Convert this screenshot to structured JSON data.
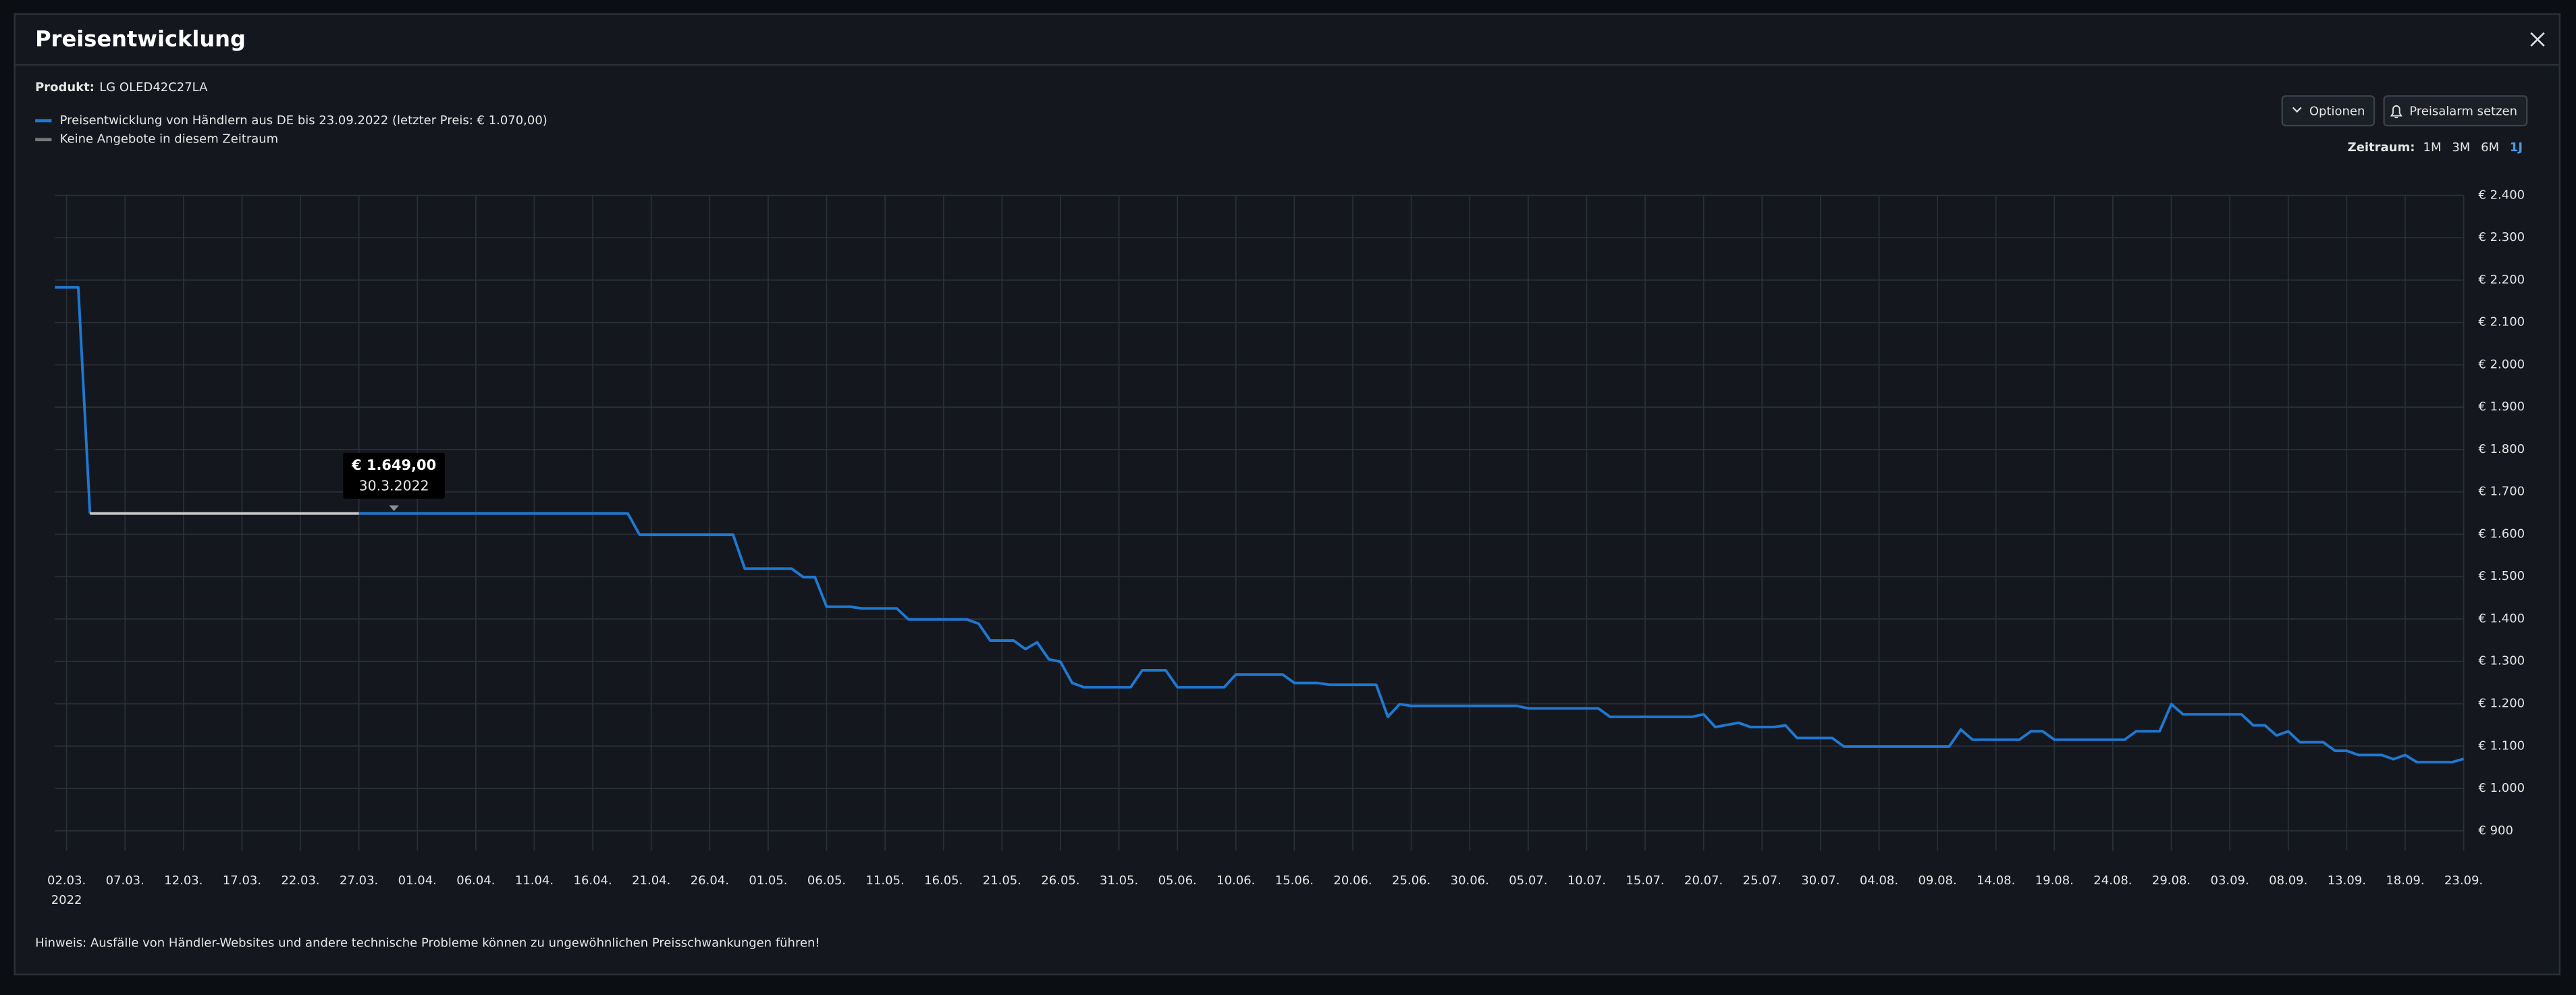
{
  "dialog": {
    "title": "Preisentwicklung",
    "product_label": "Produkt:",
    "product": "LG OLED42C27LA",
    "buttons": [
      "Optionen",
      "Preisalarm setzen"
    ],
    "range_label": "Zeitraum:",
    "ranges": [
      "1M",
      "3M",
      "6M",
      "1J"
    ],
    "active_range": "1J",
    "note": "Hinweis: Ausfälle von Händler-Websites und andere technische Probleme können zu ungewöhnlichen Preisschwankungen führen!"
  },
  "chart_data": {
    "type": "line",
    "x": [
      "2022-03-01",
      "2022-03-03",
      "2022-03-04",
      "2022-03-15",
      "2022-03-27",
      "2022-04-19",
      "2022-04-20",
      "2022-04-28",
      "2022-04-29",
      "2022-05-03",
      "2022-05-04",
      "2022-05-05",
      "2022-05-06",
      "2022-05-08",
      "2022-05-09",
      "2022-05-12",
      "2022-05-13",
      "2022-05-18",
      "2022-05-19",
      "2022-05-20",
      "2022-05-22",
      "2022-05-23",
      "2022-05-24",
      "2022-05-25",
      "2022-05-26",
      "2022-05-27",
      "2022-05-28",
      "2022-06-01",
      "2022-06-02",
      "2022-06-04",
      "2022-06-05",
      "2022-06-09",
      "2022-06-10",
      "2022-06-14",
      "2022-06-15",
      "2022-06-17",
      "2022-06-18",
      "2022-06-22",
      "2022-06-23",
      "2022-06-24",
      "2022-06-25",
      "2022-07-04",
      "2022-07-05",
      "2022-07-11",
      "2022-07-12",
      "2022-07-19",
      "2022-07-20",
      "2022-07-21",
      "2022-07-23",
      "2022-07-24",
      "2022-07-26",
      "2022-07-27",
      "2022-07-28",
      "2022-07-31",
      "2022-08-01",
      "2022-08-10",
      "2022-08-11",
      "2022-08-12",
      "2022-08-16",
      "2022-08-17",
      "2022-08-18",
      "2022-08-19",
      "2022-08-25",
      "2022-08-26",
      "2022-08-28",
      "2022-08-29",
      "2022-08-30",
      "2022-09-04",
      "2022-09-05",
      "2022-09-06",
      "2022-09-07",
      "2022-09-08",
      "2022-09-09",
      "2022-09-11",
      "2022-09-12",
      "2022-09-13",
      "2022-09-14",
      "2022-09-16",
      "2022-09-17",
      "2022-09-18",
      "2022-09-19",
      "2022-09-22",
      "2022-09-23"
    ],
    "series": [
      {
        "name": "Preisentwicklung von Händlern aus DE bis 23.09.2022 (letzter Preis: € 1.070,00)",
        "color": "#1f78d1",
        "values": [
          2183,
          2183,
          1649,
          null,
          1649,
          1649,
          1599,
          1599,
          1519,
          1519,
          1499,
          1499,
          1429,
          1429,
          1425,
          1425,
          1399,
          1399,
          1389,
          1349,
          1349,
          1329,
          1345,
          1305,
          1299,
          1249,
          1239,
          1239,
          1279,
          1279,
          1239,
          1239,
          1269,
          1269,
          1249,
          1249,
          1245,
          1245,
          1169,
          1199,
          1195,
          1195,
          1189,
          1189,
          1169,
          1169,
          1175,
          1145,
          1155,
          1145,
          1145,
          1149,
          1119,
          1119,
          1099,
          1099,
          1139,
          1115,
          1115,
          1135,
          1135,
          1115,
          1115,
          1135,
          1135,
          1199,
          1175,
          1175,
          1149,
          1149,
          1125,
          1135,
          1109,
          1109,
          1089,
          1089,
          1079,
          1079,
          1069,
          1079,
          1062,
          1062,
          1070
        ]
      },
      {
        "name": "Keine Angebote in diesem Zeitraum",
        "color": "#c9c9c9",
        "legend_color": "#777777",
        "x": [
          "2022-03-04",
          "2022-03-27"
        ],
        "values": [
          1649,
          1649
        ]
      }
    ],
    "xlim": [
      "2022-03-01",
      "2022-09-23"
    ],
    "xticks": [
      {
        "value": "2022-03-02",
        "label": "02.03."
      },
      {
        "value": "2022-03-07",
        "label": "07.03."
      },
      {
        "value": "2022-03-12",
        "label": "12.03."
      },
      {
        "value": "2022-03-17",
        "label": "17.03."
      },
      {
        "value": "2022-03-22",
        "label": "22.03."
      },
      {
        "value": "2022-03-27",
        "label": "27.03."
      },
      {
        "value": "2022-04-01",
        "label": "01.04."
      },
      {
        "value": "2022-04-06",
        "label": "06.04."
      },
      {
        "value": "2022-04-11",
        "label": "11.04."
      },
      {
        "value": "2022-04-16",
        "label": "16.04."
      },
      {
        "value": "2022-04-21",
        "label": "21.04."
      },
      {
        "value": "2022-04-26",
        "label": "26.04."
      },
      {
        "value": "2022-05-01",
        "label": "01.05."
      },
      {
        "value": "2022-05-06",
        "label": "06.05."
      },
      {
        "value": "2022-05-11",
        "label": "11.05."
      },
      {
        "value": "2022-05-16",
        "label": "16.05."
      },
      {
        "value": "2022-05-21",
        "label": "21.05."
      },
      {
        "value": "2022-05-26",
        "label": "26.05."
      },
      {
        "value": "2022-05-31",
        "label": "31.05."
      },
      {
        "value": "2022-06-05",
        "label": "05.06."
      },
      {
        "value": "2022-06-10",
        "label": "10.06."
      },
      {
        "value": "2022-06-15",
        "label": "15.06."
      },
      {
        "value": "2022-06-20",
        "label": "20.06."
      },
      {
        "value": "2022-06-25",
        "label": "25.06."
      },
      {
        "value": "2022-06-30",
        "label": "30.06."
      },
      {
        "value": "2022-07-05",
        "label": "05.07."
      },
      {
        "value": "2022-07-10",
        "label": "10.07."
      },
      {
        "value": "2022-07-15",
        "label": "15.07."
      },
      {
        "value": "2022-07-20",
        "label": "20.07."
      },
      {
        "value": "2022-07-25",
        "label": "25.07."
      },
      {
        "value": "2022-07-30",
        "label": "30.07."
      },
      {
        "value": "2022-08-04",
        "label": "04.08."
      },
      {
        "value": "2022-08-09",
        "label": "09.08."
      },
      {
        "value": "2022-08-14",
        "label": "14.08."
      },
      {
        "value": "2022-08-19",
        "label": "19.08."
      },
      {
        "value": "2022-08-24",
        "label": "24.08."
      },
      {
        "value": "2022-08-29",
        "label": "29.08."
      },
      {
        "value": "2022-09-03",
        "label": "03.09."
      },
      {
        "value": "2022-09-08",
        "label": "08.09."
      },
      {
        "value": "2022-09-13",
        "label": "13.09."
      },
      {
        "value": "2022-09-18",
        "label": "18.09."
      },
      {
        "value": "2022-09-23",
        "label": "23.09."
      }
    ],
    "xtick_year": "2022",
    "ylim": [
      900,
      2400
    ],
    "yticks": [
      {
        "value": 900,
        "label": "€ 900"
      },
      {
        "value": 1000,
        "label": "€ 1.000"
      },
      {
        "value": 1100,
        "label": "€ 1.100"
      },
      {
        "value": 1200,
        "label": "€ 1.200"
      },
      {
        "value": 1300,
        "label": "€ 1.300"
      },
      {
        "value": 1400,
        "label": "€ 1.400"
      },
      {
        "value": 1500,
        "label": "€ 1.500"
      },
      {
        "value": 1600,
        "label": "€ 1.600"
      },
      {
        "value": 1700,
        "label": "€ 1.700"
      },
      {
        "value": 1800,
        "label": "€ 1.800"
      },
      {
        "value": 1900,
        "label": "€ 1.900"
      },
      {
        "value": 2000,
        "label": "€ 2.000"
      },
      {
        "value": 2100,
        "label": "€ 2.100"
      },
      {
        "value": 2200,
        "label": "€ 2.200"
      },
      {
        "value": 2300,
        "label": "€ 2.300"
      },
      {
        "value": 2400,
        "label": "€ 2.400"
      }
    ],
    "grid": true,
    "annotation": {
      "x": "2022-03-30",
      "value": 1649,
      "value_label": "€ 1.649,00",
      "date_label": "30.3.2022"
    }
  }
}
